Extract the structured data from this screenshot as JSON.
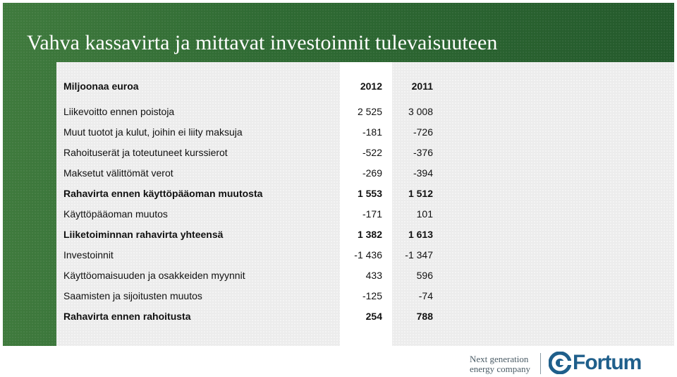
{
  "title": "Vahva kassavirta ja mittavat investoinnit tulevaisuuteen",
  "table": {
    "header": {
      "label": "Miljoonaa euroa",
      "col_2012": "2012",
      "col_2011": "2011"
    },
    "rows": [
      {
        "label": "Liikevoitto ennen poistoja",
        "v2012": "2 525",
        "v2011": "3 008",
        "bold": false
      },
      {
        "label": "Muut tuotot ja kulut, joihin ei liity maksuja",
        "v2012": "-181",
        "v2011": "-726",
        "bold": false
      },
      {
        "label": "Rahoituserät ja toteutuneet kurssierot",
        "v2012": "-522",
        "v2011": "-376",
        "bold": false
      },
      {
        "label": "Maksetut välittömät verot",
        "v2012": "-269",
        "v2011": "-394",
        "bold": false
      },
      {
        "label": "Rahavirta ennen käyttöpääoman muutosta",
        "v2012": "1 553",
        "v2011": "1 512",
        "bold": true
      },
      {
        "label": "Käyttöpääoman muutos",
        "v2012": "-171",
        "v2011": "101",
        "bold": false
      },
      {
        "label": "Liiketoiminnan rahavirta yhteensä",
        "v2012": "1 382",
        "v2011": "1 613",
        "bold": true
      },
      {
        "label": "Investoinnit",
        "v2012": "-1 436",
        "v2011": "-1 347",
        "bold": false
      },
      {
        "label": "Käyttöomaisuuden ja osakkeiden myynnit",
        "v2012": "433",
        "v2011": "596",
        "bold": false
      },
      {
        "label": "Saamisten ja sijoitusten muutos",
        "v2012": "-125",
        "v2011": "-74",
        "bold": false
      },
      {
        "label": "Rahavirta ennen rahoitusta",
        "v2012": "254",
        "v2011": "788",
        "bold": true
      }
    ]
  },
  "footer": {
    "tagline_line1": "Next generation",
    "tagline_line2": "energy company",
    "logo_text": "Fortum",
    "logo_icon": "fortum-logo-icon"
  },
  "colors": {
    "band": "#2f6a33",
    "table_bg": "#ececec",
    "highlight_col": "#ffffff",
    "logo_blue": "#1f5f8b"
  }
}
